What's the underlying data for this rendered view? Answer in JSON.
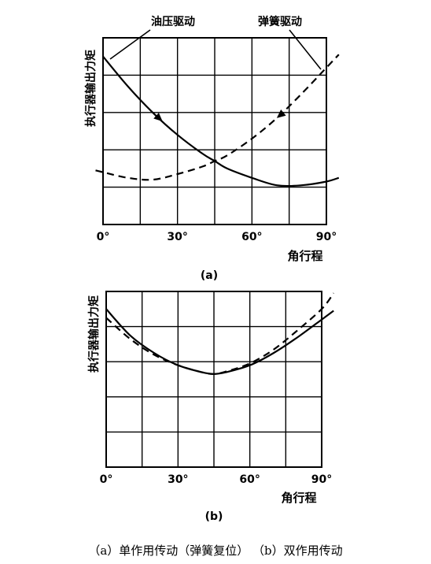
{
  "chart_data": [
    {
      "type": "line",
      "panel_label": "(a)",
      "ylabel": "执行器输出力矩",
      "xlabel": "角行程",
      "x_ticks": [
        "0°",
        "30°",
        "60°",
        "90°"
      ],
      "x_range": [
        0,
        90
      ],
      "grid": true,
      "series": [
        {
          "name": "油压驱动",
          "style": "solid",
          "x": [
            0,
            10,
            20,
            30,
            40,
            45,
            50,
            60,
            70,
            80,
            90,
            95
          ],
          "y": [
            4.5,
            3.7,
            3.0,
            2.4,
            1.9,
            1.7,
            1.5,
            1.25,
            1.05,
            1.05,
            1.15,
            1.25
          ]
        },
        {
          "name": "弹簧驱动",
          "style": "dashed",
          "x": [
            -3,
            0,
            10,
            20,
            30,
            40,
            45,
            50,
            60,
            70,
            80,
            90,
            95
          ],
          "y": [
            1.45,
            1.4,
            1.25,
            1.2,
            1.35,
            1.55,
            1.7,
            1.85,
            2.3,
            2.85,
            3.5,
            4.2,
            4.55
          ]
        }
      ]
    },
    {
      "type": "line",
      "panel_label": "(b)",
      "ylabel": "执行器输出力矩",
      "xlabel": "角行程",
      "x_ticks": [
        "0°",
        "30°",
        "60°",
        "90°"
      ],
      "x_range": [
        0,
        90
      ],
      "grid": true,
      "series": [
        {
          "style": "solid",
          "x": [
            0,
            10,
            20,
            30,
            40,
            45,
            50,
            60,
            70,
            80,
            90,
            95
          ],
          "y": [
            4.5,
            3.75,
            3.25,
            2.9,
            2.7,
            2.65,
            2.7,
            2.9,
            3.25,
            3.7,
            4.2,
            4.45
          ]
        },
        {
          "style": "dashed",
          "x": [
            0,
            10,
            20,
            30,
            40,
            45,
            50,
            60,
            70,
            80,
            90,
            95
          ],
          "y": [
            4.25,
            3.65,
            3.2,
            2.9,
            2.7,
            2.65,
            2.72,
            2.95,
            3.35,
            3.9,
            4.5,
            4.95
          ]
        }
      ]
    }
  ],
  "caption": "（a）单作用传动（弹簧复位）   （b）双作用传动"
}
